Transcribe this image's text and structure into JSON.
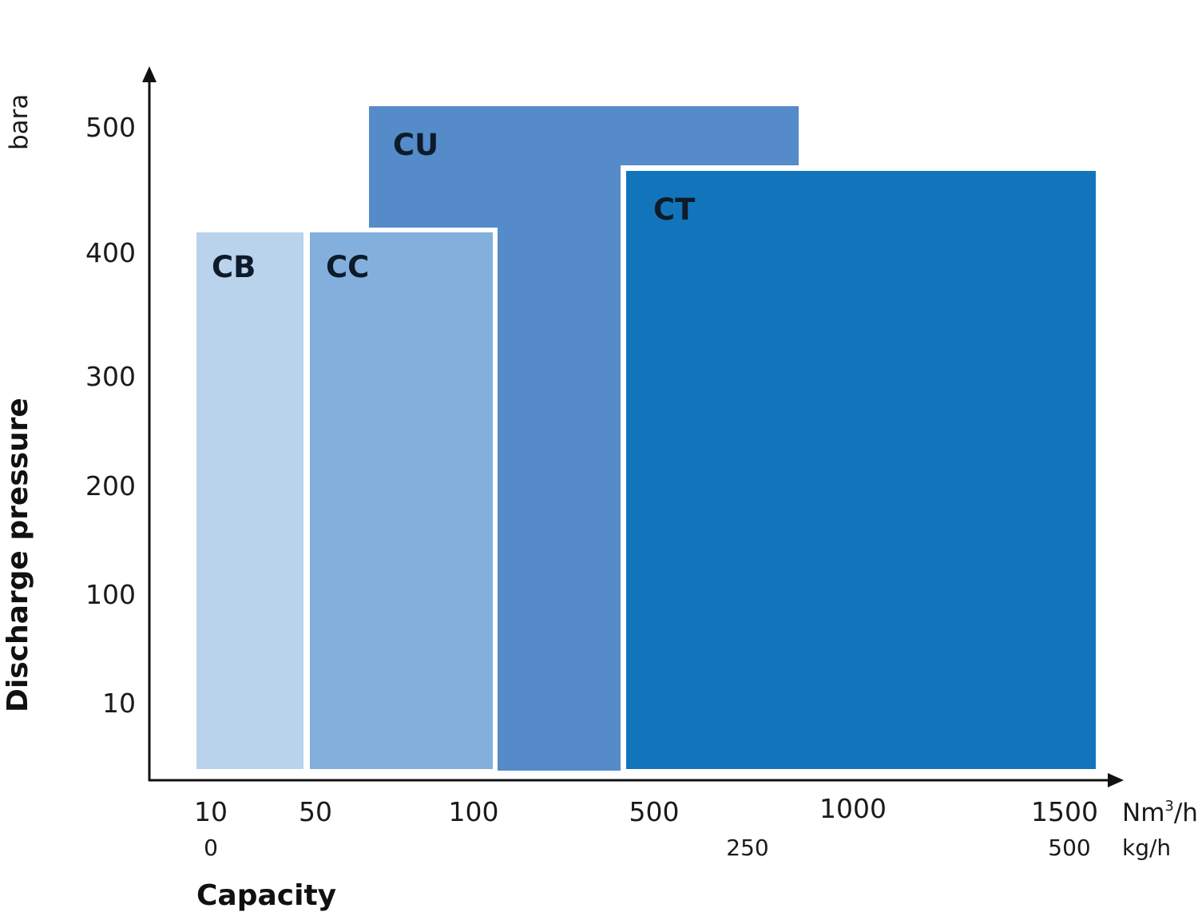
{
  "chart_data": {
    "type": "area",
    "ylabel": "Discharge pressure",
    "yunit": "bara",
    "xlabel": "Capacity",
    "xunit_primary": "Nm3/h",
    "xunit_secondary": "kg/h",
    "y_ticks": [
      "500",
      "400",
      "300",
      "200",
      "100",
      "10"
    ],
    "x_ticks_primary": [
      "10",
      "50",
      "100",
      "500",
      "1000",
      "1500"
    ],
    "x_ticks_secondary": [
      "0",
      "250",
      "500"
    ],
    "colors": {
      "CB": "#b9d3ec",
      "CC": "#83afdd",
      "CU": "#548bc8",
      "CT": "#1275bc",
      "axis": "#111111"
    },
    "regions": [
      {
        "name": "CB",
        "capacity_range": [
          "10",
          "50"
        ],
        "max_pressure_bara": 420
      },
      {
        "name": "CC",
        "capacity_range": [
          "50",
          "100"
        ],
        "max_pressure_bara": 420
      },
      {
        "name": "CU",
        "capacity_range": [
          "~70",
          "~800"
        ],
        "max_pressure_bara": 520
      },
      {
        "name": "CT",
        "capacity_range": [
          "500",
          "1500"
        ],
        "max_pressure_bara": 470
      }
    ]
  }
}
